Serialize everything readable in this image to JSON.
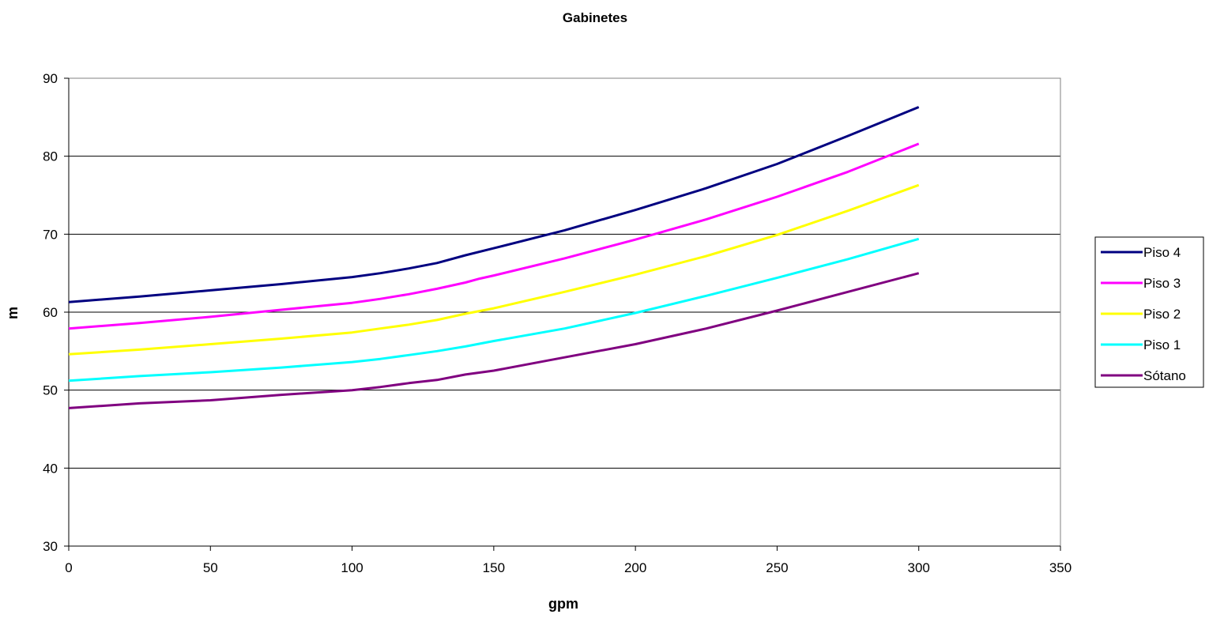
{
  "chart_data": {
    "type": "line",
    "title": "Gabinetes",
    "xlabel": "gpm",
    "ylabel": "m",
    "xlim": [
      0,
      350
    ],
    "ylim": [
      30,
      90
    ],
    "xticks": [
      0,
      50,
      100,
      150,
      200,
      250,
      300,
      350
    ],
    "yticks": [
      30,
      40,
      50,
      60,
      70,
      80,
      90
    ],
    "grid": "horizontal",
    "legend_position": "right",
    "series": [
      {
        "name": "Piso 4",
        "color": "#000080",
        "x": [
          0,
          25,
          50,
          75,
          100,
          110,
          120,
          130,
          140,
          150,
          175,
          200,
          225,
          250,
          275,
          300
        ],
        "y": [
          61.3,
          62.0,
          62.8,
          63.6,
          64.5,
          65.0,
          65.6,
          66.3,
          67.3,
          68.2,
          70.5,
          73.1,
          75.9,
          79.0,
          82.6,
          86.3
        ]
      },
      {
        "name": "Piso 3",
        "color": "#ff00ff",
        "x": [
          0,
          25,
          50,
          75,
          100,
          110,
          120,
          130,
          140,
          145,
          150,
          175,
          200,
          225,
          250,
          275,
          300
        ],
        "y": [
          57.9,
          58.6,
          59.4,
          60.3,
          61.2,
          61.7,
          62.3,
          63.0,
          63.8,
          64.3,
          64.7,
          66.9,
          69.3,
          71.9,
          74.8,
          78.0,
          81.6
        ]
      },
      {
        "name": "Piso 2",
        "color": "#ffff00",
        "x": [
          0,
          25,
          50,
          75,
          100,
          110,
          120,
          130,
          140,
          150,
          175,
          200,
          225,
          250,
          275,
          300
        ],
        "y": [
          54.6,
          55.2,
          55.9,
          56.6,
          57.4,
          57.9,
          58.4,
          59.0,
          59.8,
          60.5,
          62.6,
          64.8,
          67.2,
          69.9,
          73.0,
          76.3
        ]
      },
      {
        "name": "Piso 1",
        "color": "#00ffff",
        "x": [
          0,
          25,
          50,
          75,
          100,
          110,
          120,
          130,
          140,
          150,
          175,
          200,
          225,
          250,
          275,
          300
        ],
        "y": [
          51.2,
          51.8,
          52.3,
          52.9,
          53.6,
          54.0,
          54.5,
          55.0,
          55.6,
          56.3,
          57.9,
          59.9,
          62.1,
          64.4,
          66.8,
          69.4
        ]
      },
      {
        "name": "Sótano",
        "color": "#800080",
        "x": [
          0,
          25,
          50,
          75,
          100,
          110,
          120,
          130,
          140,
          150,
          175,
          200,
          225,
          250,
          275,
          300
        ],
        "y": [
          47.7,
          48.3,
          48.7,
          49.4,
          50.0,
          50.4,
          50.9,
          51.3,
          52.0,
          52.5,
          54.2,
          55.9,
          57.9,
          60.2,
          62.6,
          65.0
        ]
      }
    ]
  }
}
